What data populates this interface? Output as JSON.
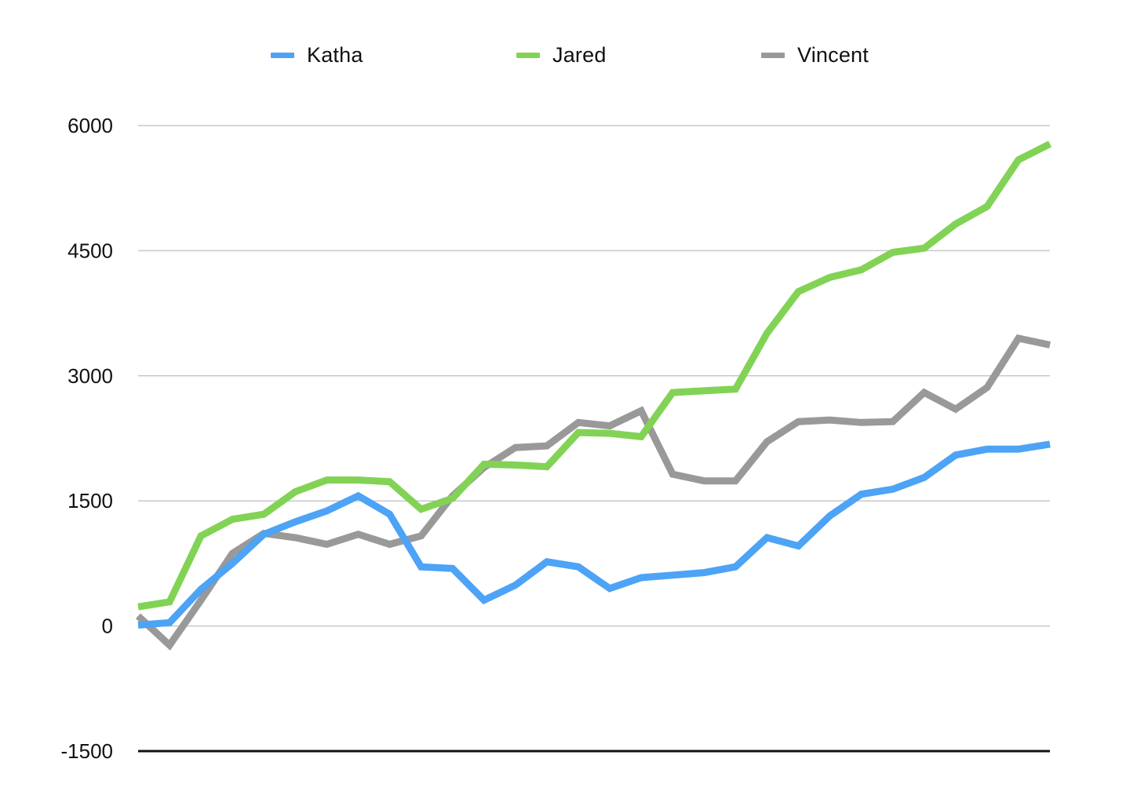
{
  "chart_data": {
    "type": "line",
    "title": "",
    "xlabel": "",
    "ylabel": "",
    "ylim": [
      -1500,
      6000
    ],
    "yticks": [
      6000,
      4500,
      3000,
      1500,
      0,
      -1500
    ],
    "ytick_labels": [
      "6000",
      "4500",
      "3000",
      "1500",
      "0",
      "-1500"
    ],
    "grid": true,
    "legend_position": "top",
    "x": [
      1,
      2,
      3,
      4,
      5,
      6,
      7,
      8,
      9,
      10,
      11,
      12,
      13,
      14,
      15,
      16,
      17,
      18,
      19,
      20,
      21,
      22,
      23,
      24,
      25,
      26,
      27,
      28,
      29,
      30
    ],
    "series": [
      {
        "name": "Katha",
        "color": "#4da3f5",
        "values": [
          10,
          40,
          440,
          750,
          1100,
          1250,
          1380,
          1560,
          1340,
          710,
          690,
          310,
          490,
          770,
          710,
          450,
          580,
          610,
          640,
          710,
          1060,
          960,
          1320,
          1580,
          1640,
          1780,
          2050,
          2120,
          2120,
          2180
        ]
      },
      {
        "name": "Jared",
        "color": "#82d355",
        "values": [
          230,
          290,
          1080,
          1280,
          1340,
          1610,
          1750,
          1750,
          1730,
          1400,
          1530,
          1940,
          1930,
          1910,
          2320,
          2310,
          2270,
          2800,
          2820,
          2840,
          3510,
          4010,
          4180,
          4270,
          4480,
          4530,
          4820,
          5030,
          5590,
          5780
        ]
      },
      {
        "name": "Vincent",
        "color": "#999999",
        "values": [
          120,
          -230,
          310,
          870,
          1110,
          1060,
          980,
          1100,
          980,
          1080,
          1560,
          1900,
          2140,
          2160,
          2440,
          2400,
          2580,
          1820,
          1740,
          1740,
          2210,
          2450,
          2470,
          2440,
          2450,
          2800,
          2600,
          2860,
          3450,
          3370
        ]
      }
    ]
  }
}
